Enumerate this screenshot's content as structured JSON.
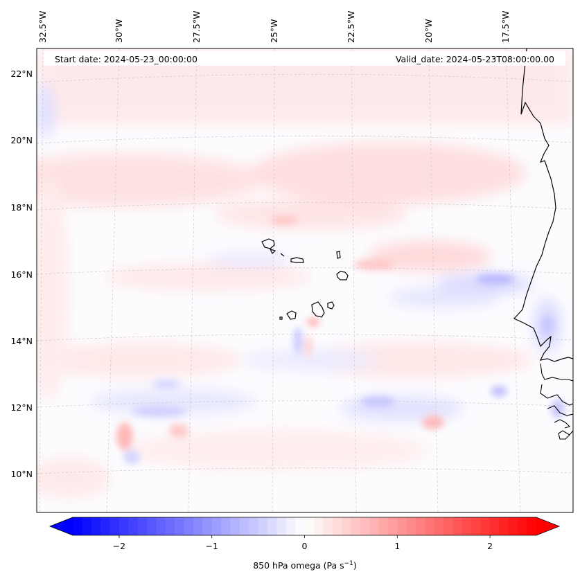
{
  "header": {
    "start_label": "Start date: 2024-05-23_00:00:00",
    "valid_label": "Valid_date: 2024-05-23T08:00:00.00"
  },
  "longitude_labels": [
    "32.5°W",
    "30°W",
    "27.5°W",
    "25°W",
    "22.5°W",
    "20°W",
    "17.5°W"
  ],
  "latitude_labels": [
    "22°N",
    "20°N",
    "18°N",
    "16°N",
    "14°N",
    "12°N",
    "10°N"
  ],
  "colorbar": {
    "ticks": [
      "−2",
      "−1",
      "0",
      "1",
      "2"
    ],
    "tick_values": [
      -2,
      -1,
      0,
      1,
      2
    ],
    "range": [
      -2.5,
      2.5
    ],
    "extend": "both",
    "label_prefix": "850 hPa omega (Pa s",
    "label_exp": "−1",
    "label_suffix": ")",
    "colors": {
      "min": "#0000ff",
      "mid": "#ffffff",
      "max": "#ff0000"
    }
  },
  "colors": {
    "coastline": "#000000",
    "gridline": "#c8c8c8",
    "frame": "#000000"
  }
}
